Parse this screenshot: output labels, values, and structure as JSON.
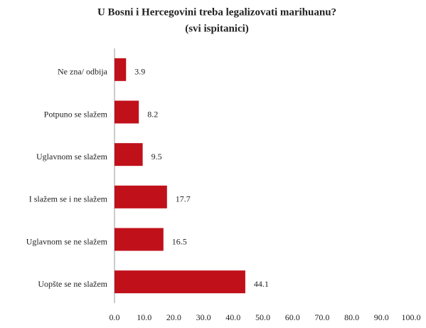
{
  "chart_data": {
    "type": "bar",
    "orientation": "horizontal",
    "title": "U Bosni i Hercegovini treba legalizovati marihuanu?",
    "subtitle": "(svi ispitanici)",
    "categories": [
      "Ne zna/ odbija",
      "Potpuno se slažem",
      "Uglavnom se slažem",
      "I slažem se i ne slažem",
      "Uglavnom se ne slažem",
      "Uopšte se ne slažem"
    ],
    "values": [
      3.9,
      8.2,
      9.5,
      17.7,
      16.5,
      44.1
    ],
    "color": "#c0101a",
    "xlim": [
      0,
      100
    ],
    "xticks": [
      {
        "value": 0,
        "label": "0.0"
      },
      {
        "value": 10,
        "label": "10.0"
      },
      {
        "value": 20,
        "label": "20.0"
      },
      {
        "value": 30,
        "label": "30.0"
      },
      {
        "value": 40,
        "label": "40.0"
      },
      {
        "value": 50,
        "label": "50.0"
      },
      {
        "value": 60,
        "label": "60.0"
      },
      {
        "value": 70,
        "label": "70.0"
      },
      {
        "value": 80,
        "label": "80.0"
      },
      {
        "value": 90,
        "label": "90.0"
      },
      {
        "value": 100,
        "label": "100.0"
      }
    ],
    "grid": false
  }
}
